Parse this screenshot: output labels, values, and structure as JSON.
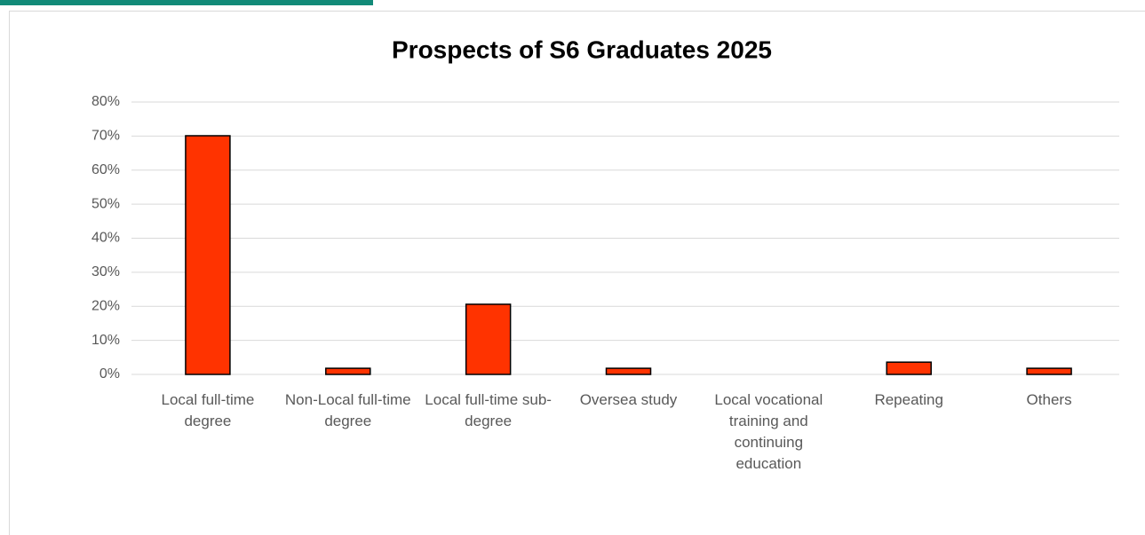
{
  "chart_data": {
    "type": "bar",
    "title": "Prospects of S6 Graduates 2025",
    "categories": [
      "Local full-time degree",
      "Non-Local full-time degree",
      "Local full-time sub-degree",
      "Oversea study",
      "Local vocational training and continuing education",
      "Repeating",
      "Others"
    ],
    "values": [
      70.1,
      1.8,
      20.6,
      1.8,
      0,
      3.6,
      1.8
    ],
    "color": "#ff3300",
    "ylim": [
      0,
      80
    ],
    "yticks": [
      {
        "value": 0,
        "label": "0%"
      },
      {
        "value": 10,
        "label": "10%"
      },
      {
        "value": 20,
        "label": "20%"
      },
      {
        "value": 30,
        "label": "30%"
      },
      {
        "value": 40,
        "label": "40%"
      },
      {
        "value": 50,
        "label": "50%"
      },
      {
        "value": 60,
        "label": "60%"
      },
      {
        "value": 70,
        "label": "70%"
      },
      {
        "value": 80,
        "label": "80%"
      }
    ],
    "grid": true
  }
}
